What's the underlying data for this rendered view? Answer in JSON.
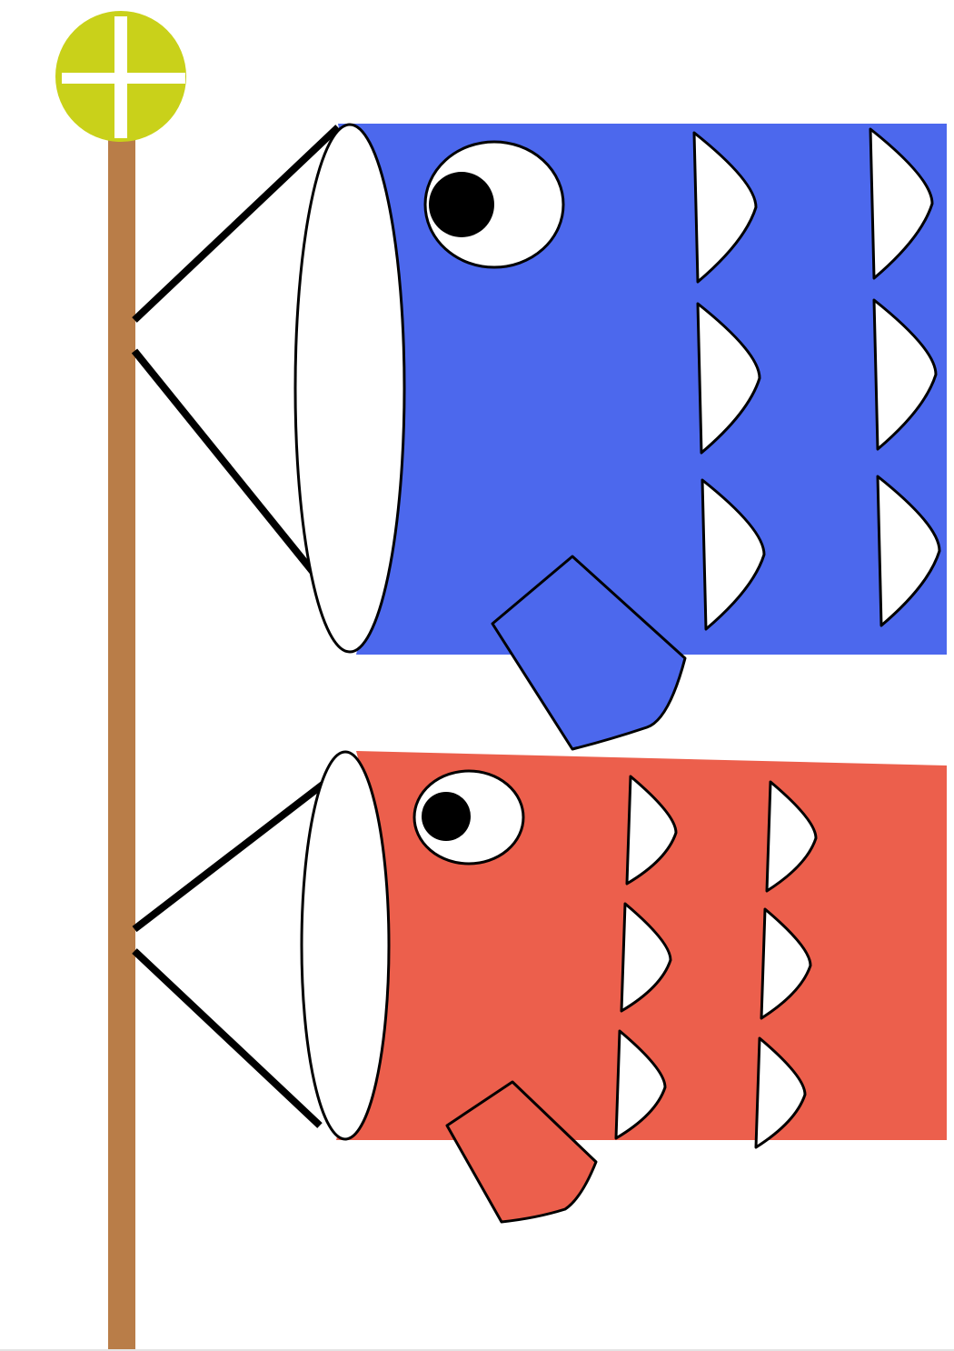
{
  "colors": {
    "background": "#ffffff",
    "pole": "#b97d48",
    "pole_top": "#c9d11a",
    "pole_top_cross": "#ffffff",
    "outline": "#000000",
    "accent_white": "#ffffff",
    "blue_koi": "#4c68ed",
    "red_koi": "#ec5f4c",
    "eye_pupil": "#000000"
  },
  "scene": {
    "figures": [
      {
        "name": "blue-koi",
        "color_key": "blue_koi",
        "position_on_pole": "top"
      },
      {
        "name": "red-koi",
        "color_key": "red_koi",
        "position_on_pole": "bottom"
      }
    ],
    "icons": [
      "koinobori-pole",
      "pole-finial",
      "blue-koi",
      "red-koi"
    ]
  }
}
